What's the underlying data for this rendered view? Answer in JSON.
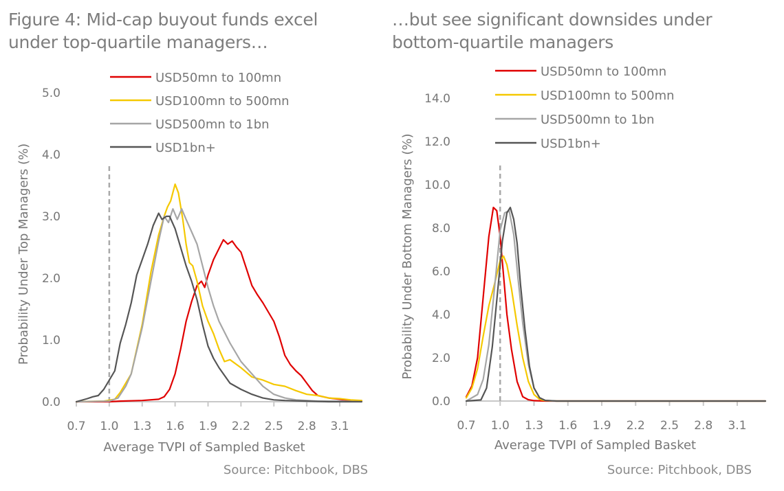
{
  "source_left": "Source: Pitchbook, DBS",
  "source_right": "Source: Pitchbook, DBS",
  "colors": {
    "USD50mn to 100mn": "#e00000",
    "USD100mn to 500mn": "#f5c800",
    "USD500mn to 1bn": "#a6a6a6",
    "USD1bn+": "#555555",
    "axis": "#c8c8c8",
    "reference_line": "#a9a9a9"
  },
  "chart_data": [
    {
      "type": "line",
      "title": "Figure 4: Mid-cap buyout funds excel\nunder top-quartile managers…",
      "xlabel": "Average TVPI of Sampled Basket",
      "ylabel": "Probability Under Top Managers (%)",
      "xlim": [
        0.7,
        3.35
      ],
      "ylim": [
        0,
        5.0
      ],
      "xticks": [
        0.7,
        1.0,
        1.3,
        1.6,
        1.9,
        2.2,
        2.5,
        2.8,
        3.1
      ],
      "xtick_labels": [
        "0.7",
        "1.0",
        "1.3",
        "1.6",
        "1.9",
        "2.2",
        "2.5",
        "2.8",
        "3.1"
      ],
      "yticks": [
        0,
        1,
        2,
        3,
        4,
        5
      ],
      "ytick_labels": [
        "0.0",
        "1.0",
        "2.0",
        "3.0",
        "4.0",
        "5.0"
      ],
      "grid": false,
      "legend": "top-center",
      "reference_line": {
        "x": 1.0,
        "style": "dashed",
        "y_top": 3.85
      },
      "series": [
        {
          "name": "USD50mn to 100mn",
          "x": [
            0.7,
            1.0,
            1.1,
            1.3,
            1.45,
            1.5,
            1.55,
            1.6,
            1.65,
            1.7,
            1.75,
            1.8,
            1.84,
            1.87,
            1.9,
            1.95,
            2.0,
            2.04,
            2.08,
            2.12,
            2.16,
            2.2,
            2.25,
            2.3,
            2.35,
            2.4,
            2.5,
            2.55,
            2.6,
            2.65,
            2.7,
            2.75,
            2.8,
            2.85,
            2.9,
            3.0,
            3.1,
            3.2,
            3.3
          ],
          "y": [
            0.0,
            0.0,
            0.01,
            0.02,
            0.04,
            0.08,
            0.2,
            0.45,
            0.85,
            1.3,
            1.62,
            1.88,
            1.95,
            1.85,
            2.05,
            2.3,
            2.48,
            2.62,
            2.55,
            2.6,
            2.5,
            2.42,
            2.15,
            1.88,
            1.73,
            1.6,
            1.3,
            1.05,
            0.75,
            0.6,
            0.5,
            0.42,
            0.3,
            0.18,
            0.1,
            0.06,
            0.04,
            0.02,
            0.01
          ]
        },
        {
          "name": "USD100mn to 500mn",
          "x": [
            0.7,
            0.95,
            1.05,
            1.1,
            1.15,
            1.2,
            1.3,
            1.38,
            1.45,
            1.5,
            1.53,
            1.56,
            1.6,
            1.63,
            1.67,
            1.7,
            1.73,
            1.76,
            1.8,
            1.85,
            1.9,
            1.95,
            2.0,
            2.05,
            2.1,
            2.2,
            2.3,
            2.4,
            2.5,
            2.6,
            2.7,
            2.8,
            2.9,
            3.0,
            3.1,
            3.2,
            3.3
          ],
          "y": [
            0.0,
            0.01,
            0.04,
            0.15,
            0.3,
            0.45,
            1.25,
            2.1,
            2.7,
            3.0,
            3.15,
            3.25,
            3.52,
            3.38,
            2.95,
            2.55,
            2.25,
            2.2,
            1.95,
            1.55,
            1.3,
            1.1,
            0.85,
            0.65,
            0.68,
            0.55,
            0.4,
            0.35,
            0.28,
            0.25,
            0.18,
            0.12,
            0.1,
            0.06,
            0.05,
            0.03,
            0.02
          ]
        },
        {
          "name": "USD500mn to 1bn",
          "x": [
            0.7,
            1.0,
            1.08,
            1.15,
            1.2,
            1.3,
            1.38,
            1.45,
            1.5,
            1.54,
            1.58,
            1.62,
            1.66,
            1.7,
            1.75,
            1.8,
            1.85,
            1.9,
            1.95,
            2.0,
            2.1,
            2.2,
            2.3,
            2.4,
            2.5,
            2.6,
            2.7,
            2.8,
            2.9,
            3.1,
            3.3
          ],
          "y": [
            0.0,
            0.01,
            0.06,
            0.25,
            0.45,
            1.2,
            1.95,
            2.6,
            3.0,
            2.9,
            3.12,
            2.95,
            3.12,
            2.95,
            2.75,
            2.55,
            2.2,
            1.85,
            1.55,
            1.3,
            0.95,
            0.65,
            0.45,
            0.25,
            0.12,
            0.06,
            0.03,
            0.02,
            0.01,
            0.01,
            0.0
          ]
        },
        {
          "name": "USD1bn+",
          "x": [
            0.7,
            0.8,
            0.85,
            0.9,
            0.95,
            1.0,
            1.05,
            1.1,
            1.15,
            1.2,
            1.25,
            1.3,
            1.35,
            1.4,
            1.45,
            1.48,
            1.52,
            1.55,
            1.6,
            1.65,
            1.7,
            1.75,
            1.8,
            1.85,
            1.9,
            1.95,
            2.0,
            2.1,
            2.2,
            2.3,
            2.4,
            2.5,
            2.6,
            2.8,
            3.0,
            3.3
          ],
          "y": [
            0.0,
            0.05,
            0.08,
            0.1,
            0.2,
            0.35,
            0.5,
            0.95,
            1.25,
            1.6,
            2.05,
            2.3,
            2.55,
            2.85,
            3.05,
            2.95,
            3.0,
            3.0,
            2.8,
            2.5,
            2.2,
            1.95,
            1.65,
            1.25,
            0.9,
            0.7,
            0.55,
            0.3,
            0.2,
            0.12,
            0.06,
            0.03,
            0.02,
            0.01,
            0.0,
            0.0
          ]
        }
      ]
    },
    {
      "type": "line",
      "title": "…but see significant downsides under\nbottom-quartile managers",
      "xlabel": "Average TVPI of Sampled Basket",
      "ylabel": "Probability Under Bottom Managers (%)",
      "xlim": [
        0.7,
        3.35
      ],
      "ylim": [
        0,
        14.0
      ],
      "xticks": [
        0.7,
        1.0,
        1.3,
        1.6,
        1.9,
        2.2,
        2.5,
        2.8,
        3.1
      ],
      "xtick_labels": [
        "0.7",
        "1.0",
        "1.3",
        "1.6",
        "1.9",
        "2.2",
        "2.5",
        "2.8",
        "3.1"
      ],
      "yticks": [
        0,
        2,
        4,
        6,
        8,
        10,
        12,
        14
      ],
      "ytick_labels": [
        "0.0",
        "2.0",
        "4.0",
        "6.0",
        "8.0",
        "10.0",
        "12.0",
        "14.0"
      ],
      "grid": false,
      "legend": "top-center",
      "reference_line": {
        "x": 1.0,
        "style": "dashed",
        "y_top": 10.9
      },
      "series": [
        {
          "name": "USD50mn to 100mn",
          "x": [
            0.7,
            0.75,
            0.8,
            0.85,
            0.9,
            0.94,
            0.97,
            1.0,
            1.03,
            1.06,
            1.1,
            1.15,
            1.2,
            1.25,
            1.3,
            1.4,
            1.5,
            3.35
          ],
          "y": [
            0.2,
            0.7,
            2.0,
            4.8,
            7.6,
            8.95,
            8.8,
            7.6,
            5.8,
            4.0,
            2.4,
            0.9,
            0.2,
            0.06,
            0.02,
            0.0,
            0.0,
            0.0
          ]
        },
        {
          "name": "USD100mn to 500mn",
          "x": [
            0.7,
            0.75,
            0.8,
            0.85,
            0.9,
            0.95,
            1.0,
            1.03,
            1.06,
            1.1,
            1.15,
            1.2,
            1.25,
            1.3,
            1.35,
            1.4,
            1.5,
            3.35
          ],
          "y": [
            0.15,
            0.6,
            1.5,
            3.0,
            4.4,
            5.4,
            6.5,
            6.7,
            6.3,
            5.2,
            3.5,
            2.0,
            0.9,
            0.3,
            0.08,
            0.02,
            0.0,
            0.0
          ]
        },
        {
          "name": "USD500mn to 1bn",
          "x": [
            0.7,
            0.8,
            0.85,
            0.9,
            0.95,
            1.0,
            1.04,
            1.08,
            1.12,
            1.16,
            1.2,
            1.25,
            1.3,
            1.35,
            1.4,
            1.5,
            3.35
          ],
          "y": [
            0.0,
            0.3,
            1.0,
            2.6,
            5.2,
            7.9,
            8.7,
            8.8,
            7.7,
            5.6,
            3.6,
            1.7,
            0.6,
            0.15,
            0.03,
            0.0,
            0.0
          ]
        },
        {
          "name": "USD1bn+",
          "x": [
            0.7,
            0.83,
            0.88,
            0.93,
            0.98,
            1.02,
            1.06,
            1.09,
            1.12,
            1.15,
            1.18,
            1.22,
            1.26,
            1.3,
            1.35,
            1.4,
            1.5,
            3.35
          ],
          "y": [
            0.0,
            0.05,
            0.6,
            2.5,
            5.2,
            7.4,
            8.7,
            8.95,
            8.4,
            7.3,
            5.4,
            3.3,
            1.6,
            0.6,
            0.15,
            0.03,
            0.0,
            0.0
          ]
        }
      ]
    }
  ]
}
